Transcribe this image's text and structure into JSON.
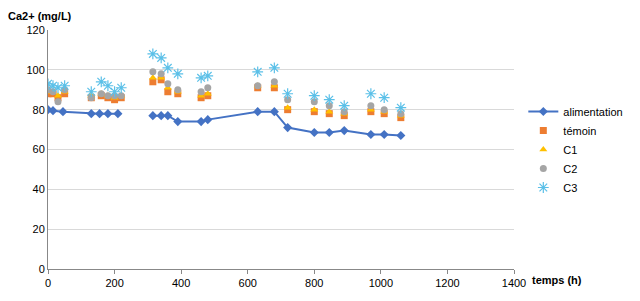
{
  "chart_data": {
    "type": "scatter",
    "x_label": "temps (h)",
    "y_label": "Ca2+ (mg/L)",
    "xlim": [
      0,
      1400
    ],
    "xticks": [
      0,
      200,
      400,
      600,
      800,
      1000,
      1200,
      1400
    ],
    "ylim": [
      0,
      120
    ],
    "yticks": [
      0,
      20,
      40,
      60,
      80,
      100,
      120
    ],
    "grid": true,
    "legend": "right",
    "series": [
      {
        "name": "alimentation",
        "type": "line",
        "color": "#4472c4",
        "marker": "diamond",
        "line_style": "solid",
        "x": [
          0,
          15,
          45,
          130,
          155,
          180,
          210,
          260,
          315,
          340,
          360,
          390,
          460,
          480,
          630,
          680,
          720,
          800,
          845,
          890,
          970,
          1010,
          1060
        ],
        "values": [
          80,
          79.5,
          79,
          78,
          78,
          78,
          78,
          null,
          77,
          77,
          77,
          74,
          74,
          75,
          79,
          79,
          71,
          68.5,
          68.5,
          69.5,
          67.5,
          67.5,
          67
        ]
      },
      {
        "name": "témoin",
        "type": "scatter",
        "color": "#ed7d31",
        "marker": "square",
        "x": [
          0,
          15,
          30,
          50,
          130,
          160,
          180,
          200,
          220,
          315,
          340,
          360,
          390,
          460,
          480,
          630,
          680,
          720,
          800,
          845,
          890,
          970,
          1010,
          1060
        ],
        "values": [
          88,
          88,
          86,
          88,
          86,
          87,
          86,
          85,
          86,
          94,
          95,
          89,
          88,
          86,
          87,
          91,
          91,
          80,
          79,
          78,
          77,
          79,
          78,
          76
        ]
      },
      {
        "name": "C1",
        "type": "scatter",
        "color": "#ffc000",
        "marker": "triangle-up",
        "x": [
          0,
          15,
          30,
          50,
          130,
          160,
          180,
          200,
          220,
          315,
          340,
          360,
          390,
          460,
          480,
          630,
          680,
          720,
          800,
          845,
          890,
          970,
          1010,
          1060
        ],
        "values": [
          89,
          89,
          87,
          89,
          87,
          88,
          87,
          86,
          87,
          96,
          96,
          91,
          89,
          87,
          88,
          92,
          92,
          81,
          80,
          79,
          78,
          80,
          79,
          77
        ]
      },
      {
        "name": "C2",
        "type": "scatter",
        "color": "#a5a5a5",
        "marker": "circle",
        "x": [
          0,
          15,
          30,
          50,
          130,
          160,
          180,
          200,
          220,
          315,
          340,
          360,
          390,
          460,
          480,
          630,
          680,
          720,
          800,
          845,
          890,
          970,
          1010,
          1060
        ],
        "values": [
          90,
          89,
          84,
          90,
          86,
          88,
          87,
          87,
          87,
          99,
          98,
          93,
          90,
          89,
          91,
          92,
          94,
          85,
          84,
          82,
          79,
          82,
          80,
          78
        ]
      },
      {
        "name": "C3",
        "type": "scatter",
        "color": "#5bc0e8",
        "marker": "asterisk",
        "x": [
          0,
          15,
          30,
          50,
          130,
          160,
          180,
          200,
          220,
          315,
          340,
          360,
          390,
          460,
          480,
          630,
          680,
          720,
          800,
          845,
          890,
          970,
          1010,
          1060
        ],
        "values": [
          93,
          92,
          91,
          92,
          89,
          94,
          92,
          89,
          91,
          108,
          106,
          101,
          98,
          96,
          97,
          99,
          101,
          88,
          87,
          85,
          82,
          88,
          86,
          81
        ]
      }
    ]
  }
}
